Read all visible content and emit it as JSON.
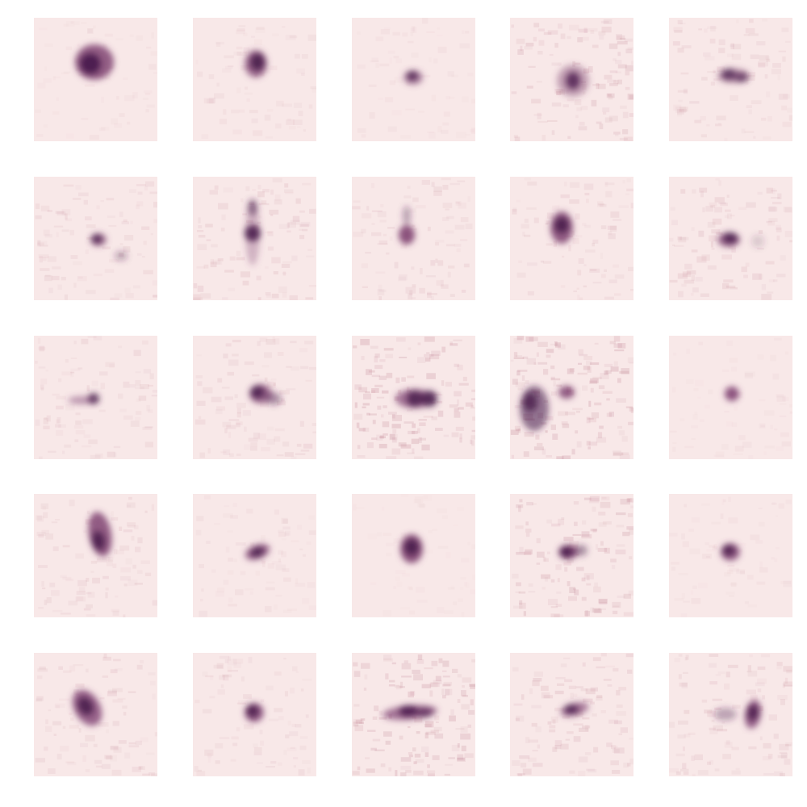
{
  "figure": {
    "rows": 5,
    "columns": 5,
    "colors": {
      "background": "#ffffff",
      "tile_base": "#f8e8e8",
      "blob_dark": "#4a1e4e",
      "blob_mid": "#7a3a6c",
      "noise_tint": "#c8909e"
    },
    "tiles": [
      {
        "name": "tile-r1-c1",
        "intensity": 0.95,
        "noise": 0.15
      },
      {
        "name": "tile-r1-c2",
        "intensity": 0.9,
        "noise": 0.2
      },
      {
        "name": "tile-r1-c3",
        "intensity": 0.8,
        "noise": 0.15
      },
      {
        "name": "tile-r1-c4",
        "intensity": 0.85,
        "noise": 0.45
      },
      {
        "name": "tile-r1-c5",
        "intensity": 0.85,
        "noise": 0.3
      },
      {
        "name": "tile-r2-c1",
        "intensity": 0.8,
        "noise": 0.3
      },
      {
        "name": "tile-r2-c2",
        "intensity": 0.9,
        "noise": 0.35
      },
      {
        "name": "tile-r2-c3",
        "intensity": 0.9,
        "noise": 0.3
      },
      {
        "name": "tile-r2-c4",
        "intensity": 0.9,
        "noise": 0.3
      },
      {
        "name": "tile-r2-c5",
        "intensity": 0.85,
        "noise": 0.35
      },
      {
        "name": "tile-r3-c1",
        "intensity": 0.8,
        "noise": 0.3
      },
      {
        "name": "tile-r3-c2",
        "intensity": 0.85,
        "noise": 0.3
      },
      {
        "name": "tile-r3-c3",
        "intensity": 0.9,
        "noise": 0.6
      },
      {
        "name": "tile-r3-c4",
        "intensity": 0.9,
        "noise": 0.6
      },
      {
        "name": "tile-r3-c5",
        "intensity": 0.85,
        "noise": 0.15
      },
      {
        "name": "tile-r4-c1",
        "intensity": 0.9,
        "noise": 0.3
      },
      {
        "name": "tile-r4-c2",
        "intensity": 0.85,
        "noise": 0.2
      },
      {
        "name": "tile-r4-c3",
        "intensity": 0.9,
        "noise": 0.1
      },
      {
        "name": "tile-r4-c4",
        "intensity": 0.9,
        "noise": 0.5
      },
      {
        "name": "tile-r4-c5",
        "intensity": 0.85,
        "noise": 0.15
      },
      {
        "name": "tile-r5-c1",
        "intensity": 0.9,
        "noise": 0.3
      },
      {
        "name": "tile-r5-c2",
        "intensity": 0.85,
        "noise": 0.25
      },
      {
        "name": "tile-r5-c3",
        "intensity": 0.9,
        "noise": 0.55
      },
      {
        "name": "tile-r5-c4",
        "intensity": 0.85,
        "noise": 0.4
      },
      {
        "name": "tile-r5-c5",
        "intensity": 0.85,
        "noise": 0.35
      }
    ]
  }
}
